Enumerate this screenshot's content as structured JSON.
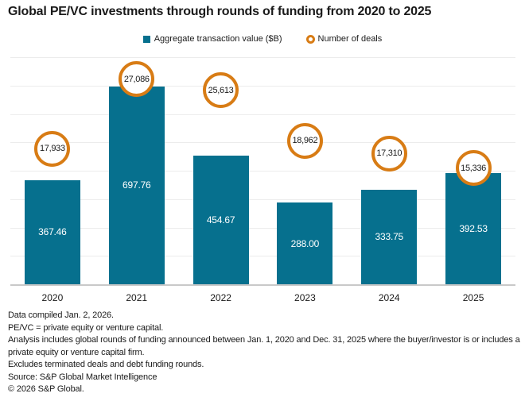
{
  "chart_data": {
    "type": "bar",
    "title": "Global PE/VC investments through rounds of funding from 2020 to 2025",
    "categories": [
      "2020",
      "2021",
      "2022",
      "2023",
      "2024",
      "2025"
    ],
    "series": [
      {
        "name": "Aggregate transaction value ($B)",
        "type": "bar",
        "axis": "left",
        "color": "#06708e",
        "values": [
          367.46,
          697.76,
          454.67,
          288.0,
          333.75,
          392.53
        ],
        "labels": [
          "367.46",
          "697.76",
          "454.67",
          "288.00",
          "333.75",
          "392.53"
        ]
      },
      {
        "name": "Number of deals",
        "type": "point",
        "axis": "right",
        "color": "#d87c15",
        "values": [
          17933,
          27086,
          25613,
          18962,
          17310,
          15336
        ],
        "labels": [
          "17,933",
          "27,086",
          "25,613",
          "18,962",
          "17,310",
          "15,336"
        ]
      }
    ],
    "ylim": [
      0,
      800
    ],
    "grid_step": 100,
    "y2lim": [
      0,
      30000
    ],
    "grid": true,
    "legend_position": "top",
    "value_label_position": "inside-bar-center",
    "deal_label_position": "inside-circle"
  },
  "footnotes": {
    "lines": [
      "Data compiled Jan. 2, 2026.",
      "PE/VC = private equity or venture capital.",
      "Analysis includes global rounds of funding announced between Jan. 1, 2020 and Dec. 31, 2025 where the buyer/investor is or includes a private equity or venture capital firm.",
      "Excludes terminated deals and debt funding rounds.",
      "Source: S&P Global Market Intelligence",
      "© 2026 S&P Global."
    ]
  }
}
